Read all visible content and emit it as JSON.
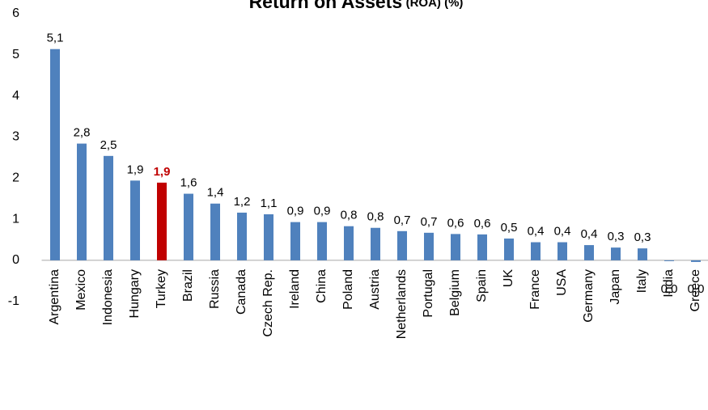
{
  "chart_data": {
    "type": "bar",
    "title": "Return on Assets",
    "title_note": "(ROA) (%)",
    "categories": [
      "Argentina",
      "Mexico",
      "Indonesia",
      "Hungary",
      "Turkey",
      "Brazil",
      "Russia",
      "Canada",
      "Czech Rep.",
      "Ireland",
      "China",
      "Poland",
      "Austria",
      "Netherlands",
      "Portugal",
      "Belgium",
      "Spain",
      "UK",
      "France",
      "USA",
      "Germany",
      "Japan",
      "Italy",
      "India",
      "Greece"
    ],
    "values": [
      5.14,
      2.84,
      2.54,
      1.94,
      1.89,
      1.62,
      1.38,
      1.16,
      1.12,
      0.93,
      0.93,
      0.83,
      0.79,
      0.71,
      0.67,
      0.64,
      0.63,
      0.53,
      0.44,
      0.44,
      0.37,
      0.31,
      0.29,
      -0.02,
      -0.04
    ],
    "value_labels": [
      "5,1",
      "2,8",
      "2,5",
      "1,9",
      "1,9",
      "1,6",
      "1,4",
      "1,2",
      "1,1",
      "0,9",
      "0,9",
      "0,8",
      "0,8",
      "0,7",
      "0,7",
      "0,6",
      "0,6",
      "0,5",
      "0,4",
      "0,4",
      "0,4",
      "0,3",
      "0,3",
      "0,0",
      "0,0"
    ],
    "color": "#4f81bd",
    "colors": [
      "#4f81bd",
      "#4f81bd",
      "#4f81bd",
      "#4f81bd",
      "#c00000",
      "#4f81bd",
      "#4f81bd",
      "#4f81bd",
      "#4f81bd",
      "#4f81bd",
      "#4f81bd",
      "#4f81bd",
      "#4f81bd",
      "#4f81bd",
      "#4f81bd",
      "#4f81bd",
      "#4f81bd",
      "#4f81bd",
      "#4f81bd",
      "#4f81bd",
      "#4f81bd",
      "#4f81bd",
      "#4f81bd",
      "#4f81bd",
      "#4f81bd"
    ],
    "ylim": [
      -1,
      6
    ],
    "yticks": [
      -1,
      0,
      1,
      2,
      3,
      4,
      5,
      6
    ],
    "grid": false
  }
}
